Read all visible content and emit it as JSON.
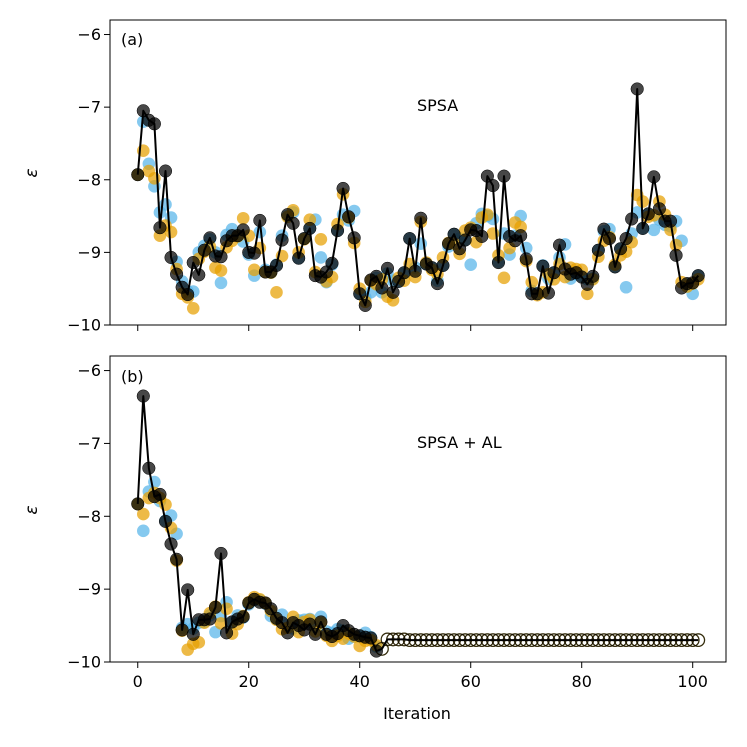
{
  "figure": {
    "xlabel": "Iteration"
  },
  "colors": {
    "blue": "#56B4E9",
    "orange": "#E69F00",
    "black": "#000000"
  },
  "chart_data": [
    {
      "type": "line",
      "panel_label": "(a)",
      "annotation": "SPSA",
      "xlabel": "",
      "ylabel": "ε",
      "xlim": [
        -5,
        106
      ],
      "ylim": [
        -10,
        -5.8
      ],
      "xticks": [
        0,
        20,
        40,
        60,
        80,
        100
      ],
      "yticks": [
        -10,
        -9,
        -8,
        -7,
        -6
      ],
      "ytick_labels": [
        "−10",
        "−9",
        "−8",
        "−7",
        "−6"
      ],
      "black": [
        -7.93,
        -7.05,
        -7.18,
        -7.23,
        -8.66,
        -7.88,
        -9.07,
        -9.3,
        -9.48,
        -9.58,
        -9.14,
        -9.31,
        -8.97,
        -8.8,
        -9.05,
        -9.06,
        -8.84,
        -8.77,
        -8.77,
        -8.69,
        -9.0,
        -9.01,
        -8.56,
        -9.27,
        -9.27,
        -9.18,
        -8.83,
        -8.48,
        -8.6,
        -9.08,
        -8.81,
        -8.67,
        -9.32,
        -9.34,
        -9.27,
        -9.15,
        -8.7,
        -8.12,
        -8.51,
        -8.8,
        -9.57,
        -9.73,
        -9.38,
        -9.33,
        -9.49,
        -9.22,
        -9.55,
        -9.4,
        -9.28,
        -8.81,
        -9.26,
        -8.53,
        -9.16,
        -9.21,
        -9.43,
        -9.18,
        -8.88,
        -8.75,
        -8.95,
        -8.83,
        -8.69,
        -8.7,
        -8.78,
        -7.95,
        -8.08,
        -9.14,
        -7.95,
        -8.78,
        -8.84,
        -8.77,
        -9.09,
        -9.57,
        -9.57,
        -9.19,
        -9.56,
        -9.28,
        -8.9,
        -9.23,
        -9.3,
        -9.28,
        -9.34,
        -9.44,
        -9.33,
        -8.97,
        -8.68,
        -8.81,
        -9.2,
        -8.95,
        -8.81,
        -8.54,
        -6.75,
        -8.67,
        -8.47,
        -7.96,
        -8.4,
        -8.57,
        -8.57,
        -9.04,
        -9.49,
        -9.43,
        -9.42,
        -9.32
      ],
      "blue": [
        -7.93,
        -7.2,
        -7.78,
        -8.09,
        -8.45,
        -8.34,
        -8.52,
        -9.13,
        -9.4,
        -9.54,
        -9.54,
        -9.0,
        -8.91,
        -8.82,
        -9.0,
        -9.42,
        -8.76,
        -8.68,
        -8.78,
        -8.85,
        -9.03,
        -9.32,
        -8.72,
        -9.24,
        -9.28,
        -9.17,
        -8.77,
        -8.5,
        -8.45,
        -9.08,
        -8.81,
        -8.67,
        -8.55,
        -9.07,
        -9.41,
        -9.17,
        -8.7,
        -8.48,
        -8.56,
        -8.43,
        -9.57,
        -9.62,
        -9.55,
        -9.35,
        -9.55,
        -9.29,
        -9.39,
        -9.4,
        -9.29,
        -8.81,
        -9.21,
        -8.88,
        -9.16,
        -9.21,
        -9.39,
        -9.18,
        -8.92,
        -8.75,
        -8.81,
        -8.83,
        -9.17,
        -8.6,
        -8.47,
        -8.5,
        -8.54,
        -9.13,
        -8.74,
        -9.03,
        -8.77,
        -8.5,
        -8.94,
        -9.53,
        -9.57,
        -9.18,
        -9.36,
        -9.28,
        -9.07,
        -8.89,
        -9.36,
        -9.3,
        -9.33,
        -9.37,
        -9.36,
        -8.97,
        -8.71,
        -8.68,
        -9.2,
        -8.95,
        -9.48,
        -8.74,
        -8.45,
        -8.67,
        -8.47,
        -8.69,
        -8.55,
        -8.62,
        -8.64,
        -8.57,
        -8.84,
        -9.44,
        -9.57,
        -9.32
      ],
      "orange": [
        -7.93,
        -7.6,
        -7.88,
        -7.98,
        -8.77,
        -8.63,
        -8.72,
        -9.23,
        -9.57,
        -9.62,
        -9.77,
        -9.09,
        -8.99,
        -8.92,
        -9.21,
        -9.25,
        -8.93,
        -8.84,
        -8.78,
        -8.53,
        -8.77,
        -9.24,
        -8.94,
        -9.27,
        -9.28,
        -9.55,
        -9.05,
        -8.51,
        -8.42,
        -9.0,
        -8.82,
        -8.55,
        -9.27,
        -8.82,
        -9.4,
        -9.34,
        -8.61,
        -8.2,
        -8.52,
        -8.87,
        -9.5,
        -9.68,
        -9.39,
        -9.44,
        -9.37,
        -9.61,
        -9.66,
        -9.35,
        -9.39,
        -9.16,
        -9.34,
        -8.58,
        -9.14,
        -9.24,
        -9.3,
        -9.07,
        -8.87,
        -8.88,
        -9.02,
        -8.7,
        -8.66,
        -8.86,
        -8.52,
        -8.48,
        -8.74,
        -9.04,
        -9.35,
        -8.94,
        -8.59,
        -8.65,
        -9.12,
        -9.41,
        -9.59,
        -9.55,
        -9.3,
        -9.37,
        -9.16,
        -9.34,
        -9.21,
        -9.23,
        -9.24,
        -9.57,
        -9.37,
        -9.06,
        -8.84,
        -8.79,
        -9.17,
        -9.04,
        -8.99,
        -8.86,
        -8.21,
        -8.3,
        -8.51,
        -8.49,
        -8.3,
        -8.48,
        -8.69,
        -8.9,
        -9.41,
        -9.47,
        -9.43,
        -9.37
      ]
    },
    {
      "type": "line",
      "panel_label": "(b)",
      "annotation": "SPSA + AL",
      "xlabel": "Iteration",
      "ylabel": "ε",
      "xlim": [
        -5,
        106
      ],
      "ylim": [
        -10,
        -5.8
      ],
      "xticks": [
        0,
        20,
        40,
        60,
        80,
        100
      ],
      "xtick_labels": [
        "0",
        "20",
        "40",
        "60",
        "80",
        "100"
      ],
      "yticks": [
        -10,
        -9,
        -8,
        -7,
        -6
      ],
      "ytick_labels": [
        "−10",
        "−9",
        "−8",
        "−7",
        "−6"
      ],
      "filled_until": 43,
      "black": [
        -7.83,
        -6.35,
        -7.34,
        -7.73,
        -7.7,
        -8.07,
        -8.38,
        -8.59,
        -9.56,
        -9.01,
        -9.62,
        -9.42,
        -9.42,
        -9.41,
        -9.25,
        -8.51,
        -9.6,
        -9.45,
        -9.41,
        -9.38,
        -9.19,
        -9.14,
        -9.18,
        -9.19,
        -9.27,
        -9.4,
        -9.46,
        -9.6,
        -9.46,
        -9.5,
        -9.56,
        -9.48,
        -9.62,
        -9.45,
        -9.62,
        -9.65,
        -9.61,
        -9.5,
        -9.57,
        -9.62,
        -9.64,
        -9.66,
        -9.67,
        -9.85,
        -9.82,
        -9.69,
        -9.69,
        -9.69,
        -9.69,
        -9.7,
        -9.7,
        -9.7,
        -9.7,
        -9.7,
        -9.7,
        -9.7,
        -9.7,
        -9.7,
        -9.7,
        -9.7,
        -9.7,
        -9.7,
        -9.7,
        -9.7,
        -9.7,
        -9.7,
        -9.7,
        -9.7,
        -9.7,
        -9.7,
        -9.7,
        -9.7,
        -9.7,
        -9.7,
        -9.7,
        -9.7,
        -9.7,
        -9.7,
        -9.7,
        -9.7,
        -9.7,
        -9.7,
        -9.7,
        -9.7,
        -9.7,
        -9.7,
        -9.7,
        -9.7,
        -9.7,
        -9.7,
        -9.7,
        -9.7,
        -9.7,
        -9.7,
        -9.7,
        -9.7,
        -9.7,
        -9.7,
        -9.7,
        -9.7,
        -9.7,
        -9.7
      ],
      "blue": [
        -7.83,
        -8.2,
        -7.66,
        -7.53,
        -7.79,
        -8.06,
        -7.99,
        -8.24,
        -9.53,
        -9.48,
        -9.54,
        -9.46,
        -9.45,
        -9.36,
        -9.59,
        -9.37,
        -9.18,
        -9.46,
        -9.36,
        -9.39,
        -9.21,
        -9.15,
        -9.15,
        -9.2,
        -9.37,
        -9.41,
        -9.35,
        -9.49,
        -9.54,
        -9.43,
        -9.42,
        -9.41,
        -9.52,
        -9.38,
        -9.58,
        -9.6,
        -9.55,
        -9.57,
        -9.68,
        -9.65,
        -9.65,
        -9.6,
        -9.66,
        -9.79
      ],
      "orange": [
        -7.83,
        -7.97,
        -7.75,
        -7.68,
        -7.75,
        -7.84,
        -8.16,
        -8.61,
        -9.57,
        -9.83,
        -9.75,
        -9.73,
        -9.46,
        -9.33,
        -9.24,
        -9.47,
        -9.27,
        -9.61,
        -9.48,
        -9.37,
        -9.18,
        -9.11,
        -9.14,
        -9.19,
        -9.3,
        -9.42,
        -9.55,
        -9.53,
        -9.38,
        -9.59,
        -9.45,
        -9.42,
        -9.58,
        -9.46,
        -9.64,
        -9.71,
        -9.64,
        -9.68,
        -9.61,
        -9.65,
        -9.78,
        -9.71,
        -9.7,
        -9.77
      ]
    }
  ]
}
